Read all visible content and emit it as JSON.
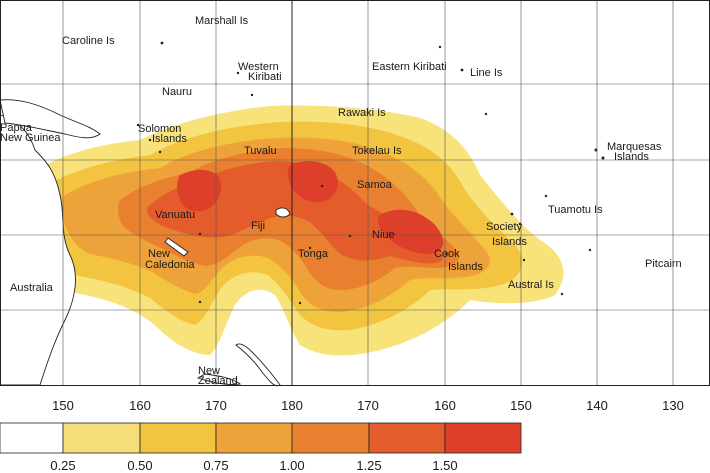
{
  "map": {
    "place_labels": {
      "marshall": "Marshall Is",
      "caroline": "Caroline Is",
      "western_kiribati_1": "Western",
      "western_kiribati_2": "Kiribati",
      "eastern_kiribati": "Eastern Kiribati",
      "line": "Line Is",
      "nauru": "Nauru",
      "rawaki": "Rawaki Is",
      "papua_1": "Papua",
      "papua_2": "New Guinea",
      "solomon_1": "Solomon",
      "solomon_2": "Islands",
      "tuvalu": "Tuvalu",
      "tokelau": "Tokelau Is",
      "marquesas_1": "Marquesas",
      "marquesas_2": "Islands",
      "samoa": "Samoa",
      "vanuatu": "Vanuatu",
      "fiji": "Fiji",
      "tuamotu": "Tuamotu Is",
      "niue": "Niue",
      "society_1": "Society",
      "society_2": "Islands",
      "new_caledonia_1": "New",
      "new_caledonia_2": "Caledonia",
      "tonga": "Tonga",
      "cook_1": "Cook",
      "cook_2": "Islands",
      "pitcairn": "Pitcairn",
      "australia": "Australia",
      "austral": "Austral Is",
      "new_zealand_1": "New",
      "new_zealand_2": "Zealand"
    },
    "longitude_ticks": [
      "150",
      "160",
      "170",
      "180",
      "170",
      "160",
      "150",
      "140",
      "130"
    ],
    "colors": {
      "land_outline": "#222222",
      "grid": "#444444",
      "ocean": "#ffffff"
    }
  },
  "legend": {
    "breaks": [
      "0.25",
      "0.50",
      "0.75",
      "1.00",
      "1.25",
      "1.50"
    ],
    "colors": [
      "#ffffff",
      "#f6df7a",
      "#f2c440",
      "#eea23a",
      "#e9802f",
      "#e45c2b",
      "#de3f2a"
    ]
  }
}
